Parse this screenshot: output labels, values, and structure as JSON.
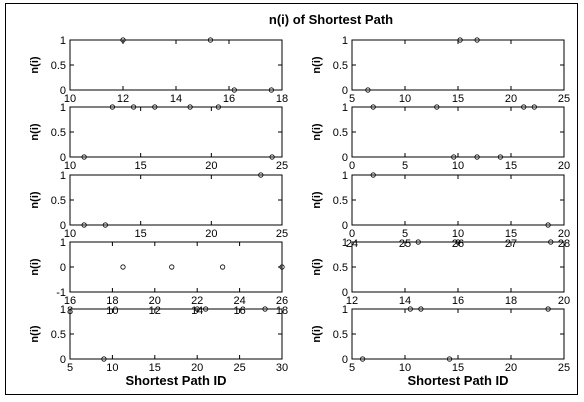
{
  "title": "n(i) of Shortest Path",
  "chart_data": {
    "type": "scatter",
    "title": "n(i) of Shortest Path",
    "ylabel": "n(i)",
    "xlabel": "Shortest Path ID",
    "grid": false,
    "subplots": [
      {
        "xlim": [
          10,
          18
        ],
        "xticks": [
          10,
          12,
          14,
          16,
          18
        ],
        "ylim": [
          0,
          1
        ],
        "yticks": [
          0,
          0.5,
          1
        ],
        "points": [
          [
            12.0,
            1
          ],
          [
            15.3,
            1
          ],
          [
            16.2,
            0
          ],
          [
            17.6,
            0
          ]
        ]
      },
      {
        "xlim": [
          5,
          25
        ],
        "xticks": [
          5,
          10,
          15,
          20,
          25
        ],
        "ylim": [
          0,
          1
        ],
        "yticks": [
          0,
          0.5,
          1
        ],
        "points": [
          [
            6.5,
            0
          ],
          [
            15.2,
            1
          ],
          [
            16.8,
            1
          ]
        ]
      },
      {
        "xlim": [
          10,
          25
        ],
        "xticks": [
          10,
          15,
          20,
          25
        ],
        "ylim": [
          0,
          1
        ],
        "yticks": [
          0,
          0.5,
          1
        ],
        "points": [
          [
            11,
            0
          ],
          [
            13,
            1
          ],
          [
            14.5,
            1
          ],
          [
            16,
            1
          ],
          [
            18.5,
            1
          ],
          [
            20.5,
            1
          ],
          [
            24.3,
            0
          ]
        ]
      },
      {
        "xlim": [
          0,
          20
        ],
        "xticks": [
          0,
          5,
          10,
          15,
          20
        ],
        "ylim": [
          0,
          1
        ],
        "yticks": [
          0,
          0.5,
          1
        ],
        "points": [
          [
            2,
            1
          ],
          [
            8,
            1
          ],
          [
            9.6,
            0
          ],
          [
            11.8,
            0
          ],
          [
            14,
            0
          ],
          [
            16.2,
            1
          ],
          [
            17.2,
            1
          ]
        ]
      },
      {
        "xlim": [
          10,
          25
        ],
        "xticks": [
          10,
          15,
          20,
          25
        ],
        "ylim": [
          0,
          1
        ],
        "yticks": [
          0,
          0.5,
          1
        ],
        "points": [
          [
            11,
            0
          ],
          [
            12.5,
            0
          ],
          [
            23.5,
            1
          ]
        ]
      },
      {
        "xlim": [
          0,
          20
        ],
        "xticks": [
          0,
          5,
          10,
          15,
          20
        ],
        "ylim": [
          0,
          1
        ],
        "yticks": [
          0,
          0.5,
          1
        ],
        "points": [
          [
            2,
            1
          ],
          [
            18.5,
            0
          ]
        ]
      },
      {
        "xlim": [
          16,
          26
        ],
        "xticks": [
          16,
          18,
          20,
          22,
          24,
          26
        ],
        "ylim": [
          -1,
          1
        ],
        "yticks": [
          -1,
          0,
          1
        ],
        "points": [
          [
            18.5,
            0
          ],
          [
            20.8,
            0
          ],
          [
            23.2,
            0
          ],
          [
            26,
            0
          ]
        ]
      },
      {
        "xlim": [
          12,
          20
        ],
        "xticks": [
          12,
          14,
          16,
          18,
          20
        ],
        "ylim": [
          0,
          1
        ],
        "yticks": [
          0,
          0.5,
          1
        ],
        "points": [
          [
            14.5,
            1
          ],
          [
            16,
            1
          ],
          [
            19.5,
            1
          ]
        ]
      },
      {
        "xlim": [
          5,
          30
        ],
        "xticks": [
          5,
          10,
          15,
          20,
          25,
          30
        ],
        "ylim": [
          0,
          1
        ],
        "yticks": [
          0,
          0.5,
          1
        ],
        "points": [
          [
            9,
            0
          ],
          [
            20,
            1
          ],
          [
            21,
            1
          ],
          [
            28,
            1
          ]
        ]
      },
      {
        "xlim": [
          5,
          25
        ],
        "xticks": [
          5,
          10,
          15,
          20,
          25
        ],
        "ylim": [
          0,
          1
        ],
        "yticks": [
          0,
          0.5,
          1
        ],
        "points": [
          [
            6,
            0
          ],
          [
            10.5,
            1
          ],
          [
            11.5,
            1
          ],
          [
            14.2,
            0
          ],
          [
            23.5,
            1
          ]
        ]
      }
    ],
    "extra_tick_rows": [
      {
        "below_subplot": 6,
        "labels": [
          "24",
          "25",
          "26",
          "27",
          "28"
        ]
      },
      {
        "below_subplot": 7,
        "labels": [
          "8",
          "10",
          "12",
          "14",
          "16",
          "18"
        ]
      }
    ]
  }
}
